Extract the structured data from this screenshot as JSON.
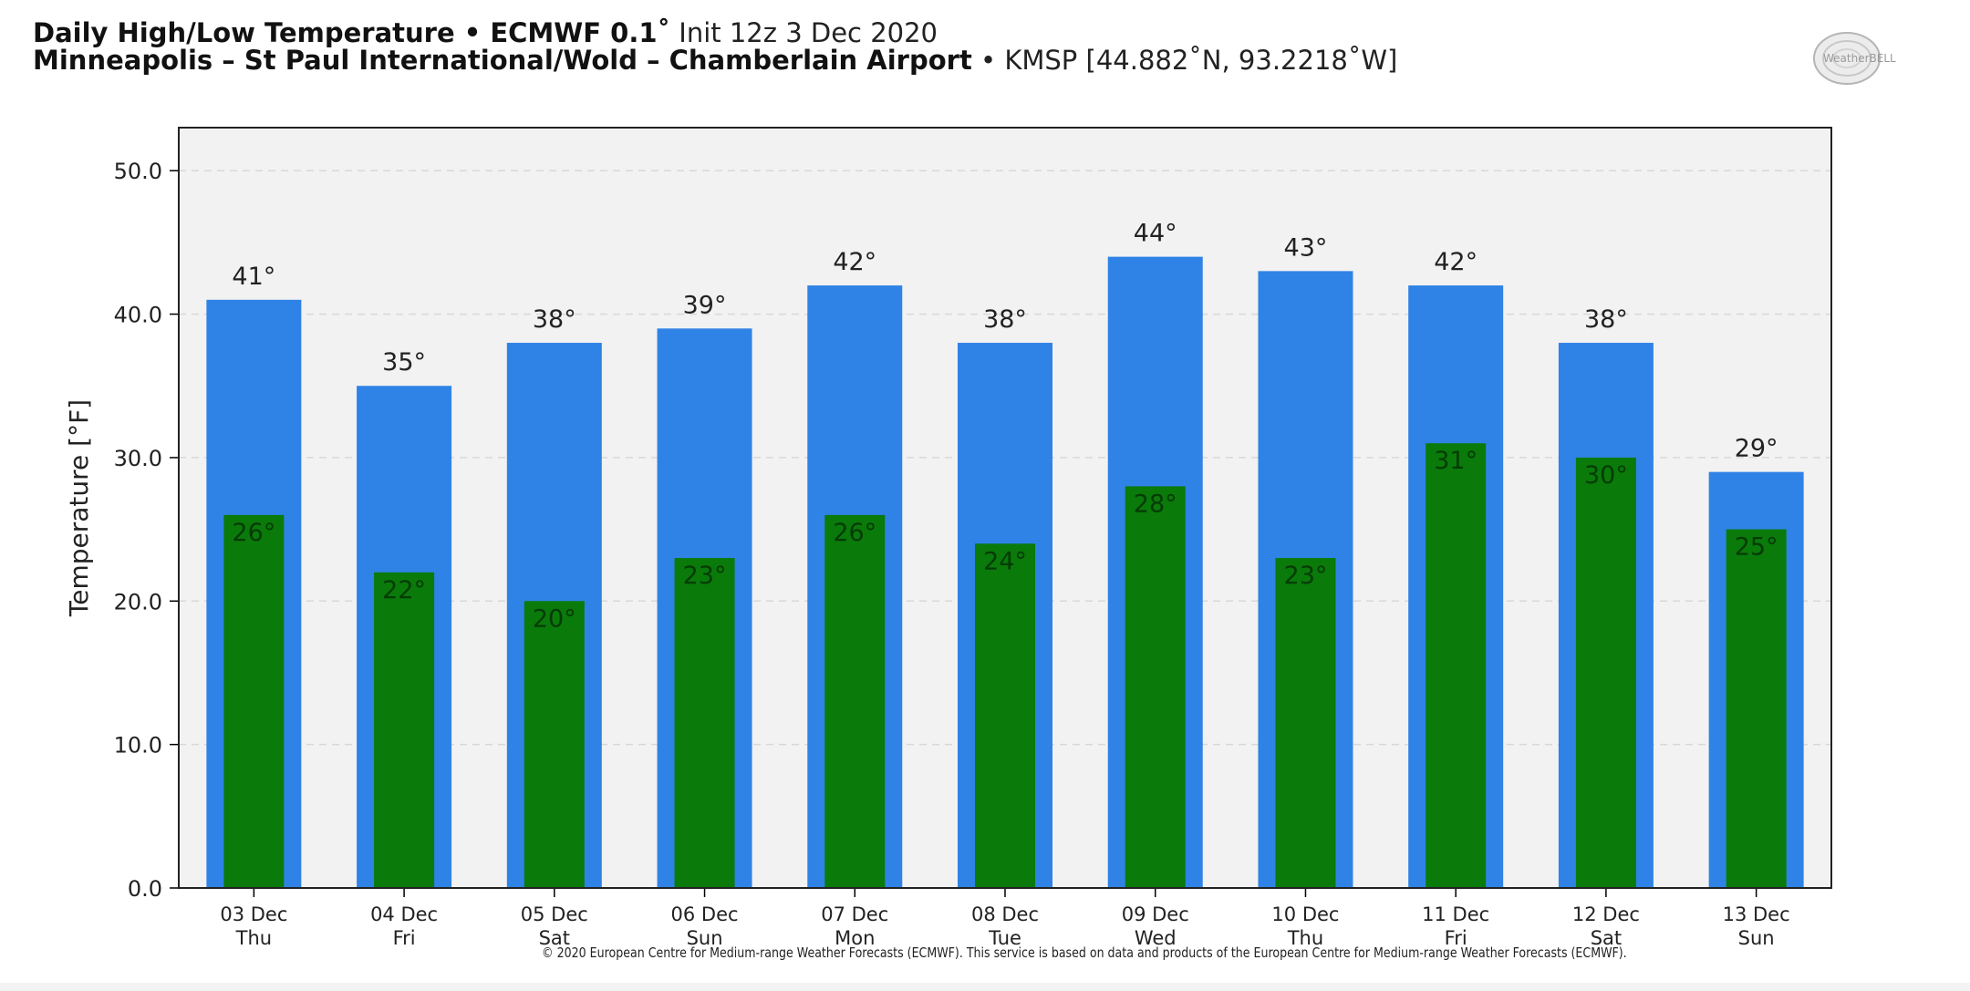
{
  "header": {
    "title_bold": "Daily High/Low Temperature • ECMWF 0.1˚",
    "title_rest": " Init 12z 3 Dec 2020",
    "location_bold": "Minneapolis – St Paul International/Wold – Chamberlain Airport",
    "location_rest": " • KMSP [44.882˚N, 93.2218˚W]"
  },
  "logo": {
    "text": "WeatherBELL"
  },
  "copyright": "© 2020 European Centre for Medium-range Weather Forecasts (ECMWF). This service is based on data and products of the European Centre for Medium-range Weather Forecasts (ECMWF).",
  "colors": {
    "high": "#2f83e6",
    "low": "#0a7a0a",
    "plot_bg": "#f2f2f2",
    "grid": "#d8d8d8"
  },
  "chart_data": {
    "type": "bar",
    "ylabel": "Temperature [°F]",
    "ylim": [
      0,
      53
    ],
    "yticks": [
      "0.0",
      "10.0",
      "20.0",
      "30.0",
      "40.0",
      "50.0"
    ],
    "ytick_values": [
      0,
      10,
      20,
      30,
      40,
      50
    ],
    "grid": true,
    "label_suffix": "°",
    "categories": [
      [
        "03 Dec",
        "Thu"
      ],
      [
        "04 Dec",
        "Fri"
      ],
      [
        "05 Dec",
        "Sat"
      ],
      [
        "06 Dec",
        "Sun"
      ],
      [
        "07 Dec",
        "Mon"
      ],
      [
        "08 Dec",
        "Tue"
      ],
      [
        "09 Dec",
        "Wed"
      ],
      [
        "10 Dec",
        "Thu"
      ],
      [
        "11 Dec",
        "Fri"
      ],
      [
        "12 Dec",
        "Sat"
      ],
      [
        "13 Dec",
        "Sun"
      ]
    ],
    "series": [
      {
        "values": [
          41,
          35,
          38,
          39,
          42,
          38,
          44,
          43,
          42,
          38,
          29
        ]
      },
      {
        "values": [
          26,
          22,
          20,
          23,
          26,
          24,
          28,
          23,
          31,
          30,
          25
        ]
      }
    ]
  }
}
